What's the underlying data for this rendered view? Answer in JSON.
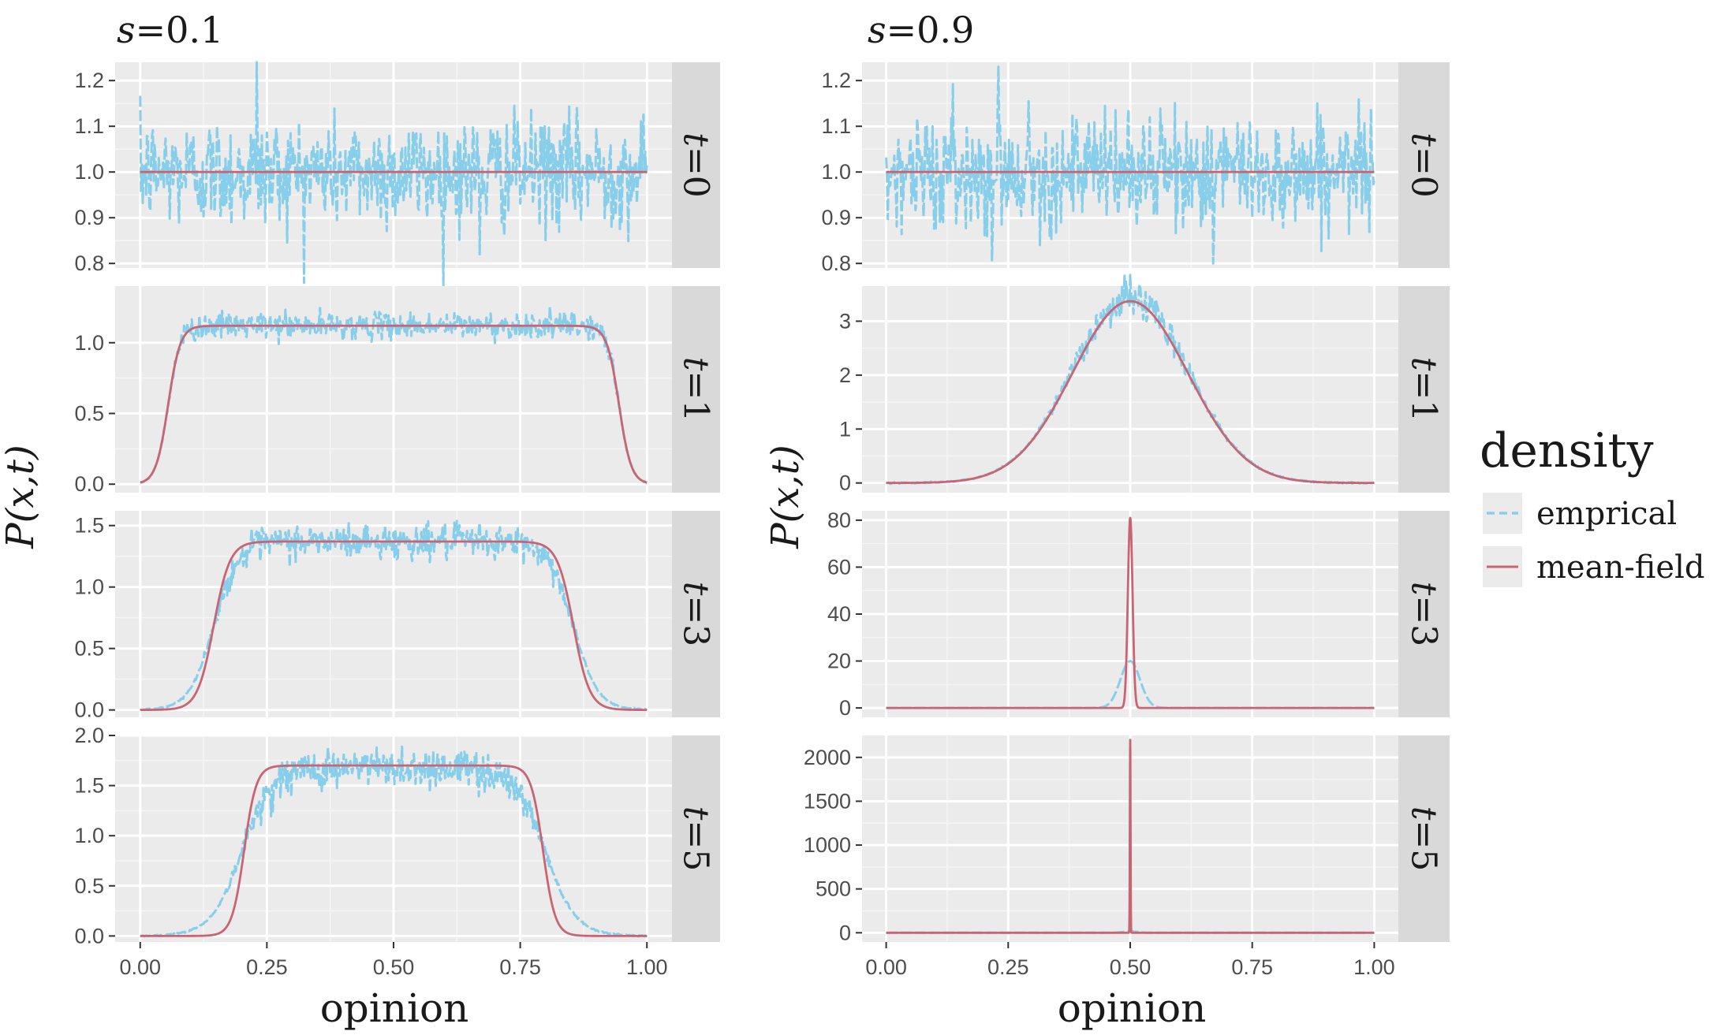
{
  "chart_data": {
    "type": "line",
    "xlabel": "opinion",
    "ylabel": "P(x,t)",
    "legend": {
      "title": "density",
      "placement": "right",
      "entries": [
        {
          "label": "emprical",
          "color": "#87ceeb",
          "style": "dashed"
        },
        {
          "label": "mean-field",
          "color": "#c86473",
          "style": "solid"
        }
      ]
    },
    "x_ticks": [
      "0.00",
      "0.25",
      "0.50",
      "0.75",
      "1.00"
    ],
    "xlim": [
      0,
      1
    ],
    "columns": [
      {
        "title_var": "s",
        "title_val": "0.1",
        "panels": [
          {
            "strip_var": "t",
            "strip_val": "0",
            "ylim": [
              0.79,
              1.24
            ],
            "yticks": [
              0.8,
              0.9,
              1.0,
              1.1,
              1.2
            ],
            "ytick_labels": [
              "0.8",
              "0.9",
              "1.0",
              "1.1",
              "1.2"
            ],
            "meanfield": {
              "shape": "flat",
              "height": 1.0
            },
            "empirical": {
              "shape": "flat",
              "height": 1.0,
              "noise": 0.06,
              "spikes": [
                1.24,
                0.82
              ]
            }
          },
          {
            "strip_var": "t",
            "strip_val": "1",
            "ylim": [
              -0.06,
              1.4
            ],
            "yticks": [
              0.0,
              0.5,
              1.0
            ],
            "ytick_labels": [
              "0.0",
              "0.5",
              "1.0"
            ],
            "meanfield": {
              "shape": "plateau",
              "height": 1.12,
              "edge": 0.055,
              "width": 0.012
            },
            "empirical": {
              "shape": "plateau",
              "height": 1.12,
              "edge": 0.055,
              "width": 0.012,
              "noise": 0.04
            }
          },
          {
            "strip_var": "t",
            "strip_val": "3",
            "ylim": [
              -0.06,
              1.62
            ],
            "yticks": [
              0.0,
              0.5,
              1.0,
              1.5
            ],
            "ytick_labels": [
              "0.0",
              "0.5",
              "1.0",
              "1.5"
            ],
            "meanfield": {
              "shape": "plateau",
              "height": 1.37,
              "edge": 0.145,
              "width": 0.016
            },
            "empirical": {
              "shape": "plateau",
              "height": 1.37,
              "edge": 0.145,
              "width": 0.024,
              "noise": 0.05
            }
          },
          {
            "strip_var": "t",
            "strip_val": "5",
            "ylim": [
              -0.06,
              2.0
            ],
            "yticks": [
              0.0,
              0.5,
              1.0,
              1.5,
              2.0
            ],
            "ytick_labels": [
              "0.0",
              "0.5",
              "1.0",
              "1.5",
              "2.0"
            ],
            "meanfield": {
              "shape": "plateau",
              "height": 1.7,
              "edge": 0.205,
              "width": 0.012
            },
            "empirical": {
              "shape": "plateau",
              "height": 1.68,
              "edge": 0.2,
              "width": 0.03,
              "noise": 0.06
            }
          }
        ]
      },
      {
        "title_var": "s",
        "title_val": "0.9",
        "panels": [
          {
            "strip_var": "t",
            "strip_val": "0",
            "ylim": [
              0.79,
              1.24
            ],
            "yticks": [
              0.8,
              0.9,
              1.0,
              1.1,
              1.2
            ],
            "ytick_labels": [
              "0.8",
              "0.9",
              "1.0",
              "1.1",
              "1.2"
            ],
            "meanfield": {
              "shape": "flat",
              "height": 1.0
            },
            "empirical": {
              "shape": "flat",
              "height": 1.0,
              "noise": 0.06,
              "spikes": [
                1.23,
                0.8
              ]
            }
          },
          {
            "strip_var": "t",
            "strip_val": "1",
            "ylim": [
              -0.18,
              3.65
            ],
            "yticks": [
              0,
              1,
              2,
              3
            ],
            "ytick_labels": [
              "0",
              "1",
              "2",
              "3"
            ],
            "meanfield": {
              "shape": "gauss",
              "height": 3.37,
              "sigma": 0.118
            },
            "empirical": {
              "shape": "gauss",
              "height": 3.45,
              "sigma": 0.118,
              "noise": 0.05
            }
          },
          {
            "strip_var": "t",
            "strip_val": "3",
            "ylim": [
              -4,
              84
            ],
            "yticks": [
              0,
              20,
              40,
              60,
              80
            ],
            "ytick_labels": [
              "0",
              "20",
              "40",
              "60",
              "80"
            ],
            "meanfield": {
              "shape": "gauss",
              "height": 81,
              "sigma": 0.0048
            },
            "empirical": {
              "shape": "gauss",
              "height": 20,
              "sigma": 0.02,
              "noise": 0.0
            }
          },
          {
            "strip_var": "t",
            "strip_val": "5",
            "ylim": [
              -105,
              2250
            ],
            "yticks": [
              0,
              500,
              1000,
              1500,
              2000
            ],
            "ytick_labels": [
              "0",
              "500",
              "1000",
              "1500",
              "2000"
            ],
            "meanfield": {
              "shape": "gauss",
              "height": 2200,
              "sigma": 0.0007
            },
            "empirical": {
              "shape": "gauss",
              "height": 15,
              "sigma": 0.015,
              "noise": 0.0
            }
          }
        ]
      }
    ]
  }
}
